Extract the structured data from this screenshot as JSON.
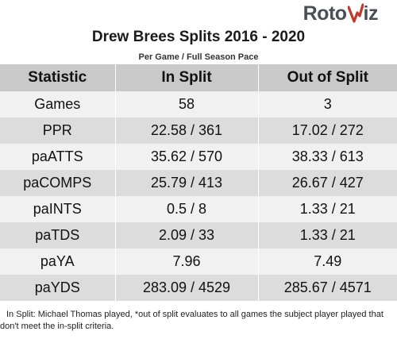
{
  "logo": {
    "text_left": "Roto",
    "text_right": "iz",
    "accent_color": "#c0392b",
    "dark_color": "#4a4f57"
  },
  "title": "Drew Brees Splits 2016 - 2020",
  "subtitle": "Per Game / Full Season Pace",
  "table": {
    "headers": [
      "Statistic",
      "In Split",
      "Out of Split"
    ],
    "rows": [
      [
        "Games",
        "58",
        "3"
      ],
      [
        "PPR",
        "22.58 / 361",
        "17.02 / 272"
      ],
      [
        "paATTS",
        "35.62 / 570",
        "38.33 / 613"
      ],
      [
        "paCOMPS",
        "25.79 / 413",
        "26.67 / 427"
      ],
      [
        "paINTS",
        "0.5 / 8",
        "1.33 / 21"
      ],
      [
        "paTDS",
        "2.09 / 33",
        "1.33 / 21"
      ],
      [
        "paYA",
        "7.96",
        "7.49"
      ],
      [
        "paYDS",
        "283.09 / 4529",
        "285.67 / 4571"
      ]
    ]
  },
  "footnote": "In Split: Michael Thomas played,  *out of split evaluates to all games the subject player played that don't meet the in-split criteria."
}
